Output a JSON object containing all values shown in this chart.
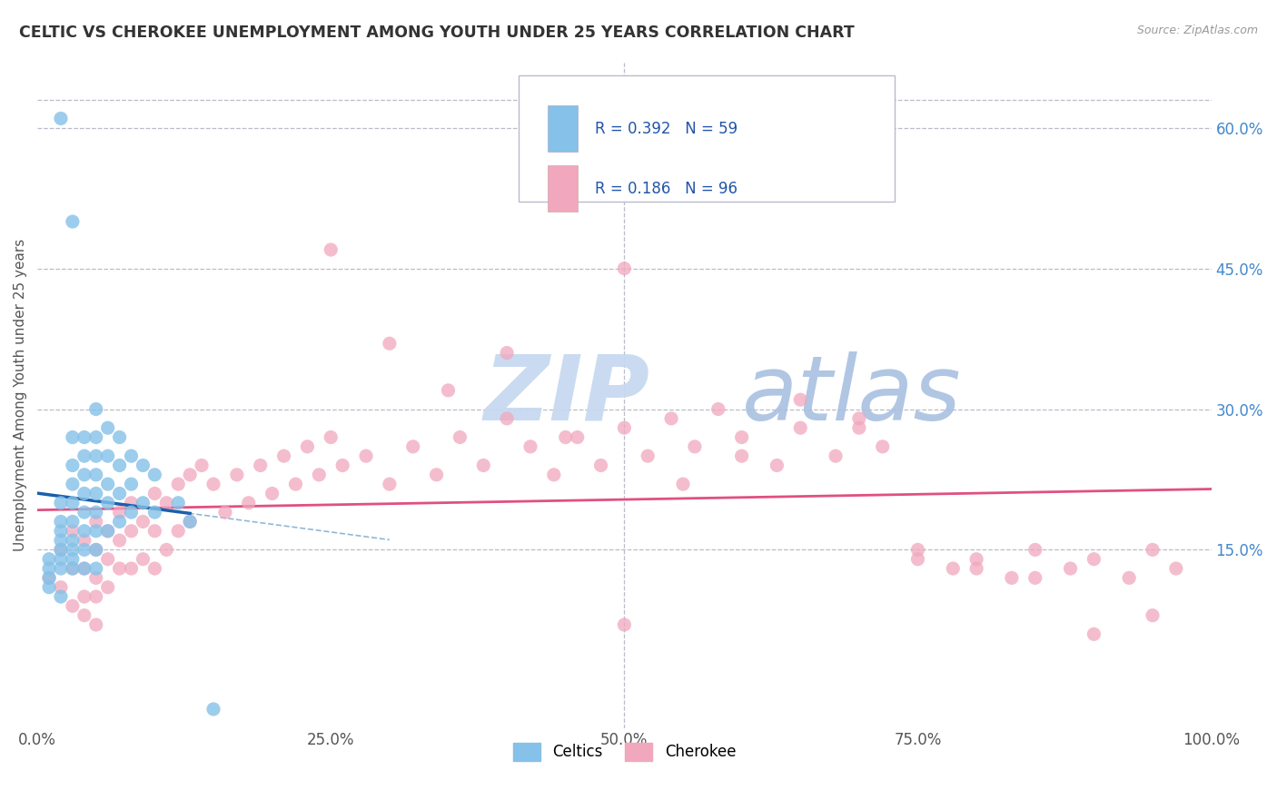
{
  "title": "CELTIC VS CHEROKEE UNEMPLOYMENT AMONG YOUTH UNDER 25 YEARS CORRELATION CHART",
  "source": "Source: ZipAtlas.com",
  "ylabel": "Unemployment Among Youth under 25 years",
  "xlim": [
    0.0,
    1.0
  ],
  "ylim": [
    -0.04,
    0.67
  ],
  "xticks": [
    0.0,
    0.25,
    0.5,
    0.75,
    1.0
  ],
  "yticks": [
    0.15,
    0.3,
    0.45,
    0.6
  ],
  "xticklabels": [
    "0.0%",
    "25.0%",
    "50.0%",
    "75.0%",
    "100.0%"
  ],
  "yticklabels": [
    "15.0%",
    "30.0%",
    "45.0%",
    "60.0%"
  ],
  "legend_labels": [
    "Celtics",
    "Cherokee"
  ],
  "celtics_R": "0.392",
  "celtics_N": "59",
  "cherokee_R": "0.186",
  "cherokee_N": "96",
  "celtics_color": "#85C1E8",
  "cherokee_color": "#F1A7BE",
  "trend_celtics_color": "#1A5FAB",
  "trend_cherokee_color": "#E05080",
  "watermark_zip_color": "#C8D8EE",
  "watermark_atlas_color": "#AABBD8",
  "background_color": "#FFFFFF",
  "grid_color": "#BBBBCC",
  "title_color": "#333333",
  "celtics_x": [
    0.01,
    0.01,
    0.01,
    0.01,
    0.02,
    0.02,
    0.02,
    0.02,
    0.02,
    0.02,
    0.02,
    0.02,
    0.02,
    0.03,
    0.03,
    0.03,
    0.03,
    0.03,
    0.03,
    0.03,
    0.03,
    0.03,
    0.04,
    0.04,
    0.04,
    0.04,
    0.04,
    0.04,
    0.04,
    0.04,
    0.05,
    0.05,
    0.05,
    0.05,
    0.05,
    0.05,
    0.05,
    0.05,
    0.05,
    0.06,
    0.06,
    0.06,
    0.06,
    0.06,
    0.07,
    0.07,
    0.07,
    0.07,
    0.08,
    0.08,
    0.08,
    0.09,
    0.09,
    0.1,
    0.1,
    0.12,
    0.13,
    0.03,
    0.15
  ],
  "celtics_y": [
    0.14,
    0.13,
    0.12,
    0.11,
    0.61,
    0.2,
    0.18,
    0.17,
    0.16,
    0.15,
    0.14,
    0.13,
    0.1,
    0.27,
    0.24,
    0.22,
    0.2,
    0.18,
    0.16,
    0.15,
    0.14,
    0.13,
    0.27,
    0.25,
    0.23,
    0.21,
    0.19,
    0.17,
    0.15,
    0.13,
    0.3,
    0.27,
    0.25,
    0.23,
    0.21,
    0.19,
    0.17,
    0.15,
    0.13,
    0.28,
    0.25,
    0.22,
    0.2,
    0.17,
    0.27,
    0.24,
    0.21,
    0.18,
    0.25,
    0.22,
    0.19,
    0.24,
    0.2,
    0.23,
    0.19,
    0.2,
    0.18,
    0.5,
    -0.02
  ],
  "cherokee_x": [
    0.01,
    0.02,
    0.02,
    0.03,
    0.03,
    0.03,
    0.04,
    0.04,
    0.04,
    0.04,
    0.05,
    0.05,
    0.05,
    0.05,
    0.05,
    0.06,
    0.06,
    0.06,
    0.07,
    0.07,
    0.07,
    0.08,
    0.08,
    0.08,
    0.09,
    0.09,
    0.1,
    0.1,
    0.1,
    0.11,
    0.11,
    0.12,
    0.12,
    0.13,
    0.13,
    0.14,
    0.15,
    0.16,
    0.17,
    0.18,
    0.19,
    0.2,
    0.21,
    0.22,
    0.23,
    0.24,
    0.25,
    0.26,
    0.28,
    0.3,
    0.32,
    0.34,
    0.36,
    0.38,
    0.4,
    0.42,
    0.44,
    0.46,
    0.48,
    0.5,
    0.52,
    0.54,
    0.56,
    0.58,
    0.6,
    0.63,
    0.65,
    0.68,
    0.7,
    0.72,
    0.75,
    0.78,
    0.8,
    0.83,
    0.85,
    0.88,
    0.9,
    0.93,
    0.95,
    0.97,
    0.25,
    0.3,
    0.35,
    0.4,
    0.45,
    0.5,
    0.55,
    0.6,
    0.65,
    0.7,
    0.75,
    0.8,
    0.85,
    0.9,
    0.95,
    0.5
  ],
  "cherokee_y": [
    0.12,
    0.15,
    0.11,
    0.17,
    0.13,
    0.09,
    0.16,
    0.13,
    0.1,
    0.08,
    0.18,
    0.15,
    0.12,
    0.1,
    0.07,
    0.17,
    0.14,
    0.11,
    0.19,
    0.16,
    0.13,
    0.2,
    0.17,
    0.13,
    0.18,
    0.14,
    0.21,
    0.17,
    0.13,
    0.2,
    0.15,
    0.22,
    0.17,
    0.23,
    0.18,
    0.24,
    0.22,
    0.19,
    0.23,
    0.2,
    0.24,
    0.21,
    0.25,
    0.22,
    0.26,
    0.23,
    0.27,
    0.24,
    0.25,
    0.22,
    0.26,
    0.23,
    0.27,
    0.24,
    0.29,
    0.26,
    0.23,
    0.27,
    0.24,
    0.28,
    0.25,
    0.29,
    0.26,
    0.3,
    0.27,
    0.24,
    0.28,
    0.25,
    0.29,
    0.26,
    0.15,
    0.13,
    0.14,
    0.12,
    0.15,
    0.13,
    0.14,
    0.12,
    0.15,
    0.13,
    0.47,
    0.37,
    0.32,
    0.36,
    0.27,
    0.45,
    0.22,
    0.25,
    0.31,
    0.28,
    0.14,
    0.13,
    0.12,
    0.06,
    0.08,
    0.07
  ]
}
